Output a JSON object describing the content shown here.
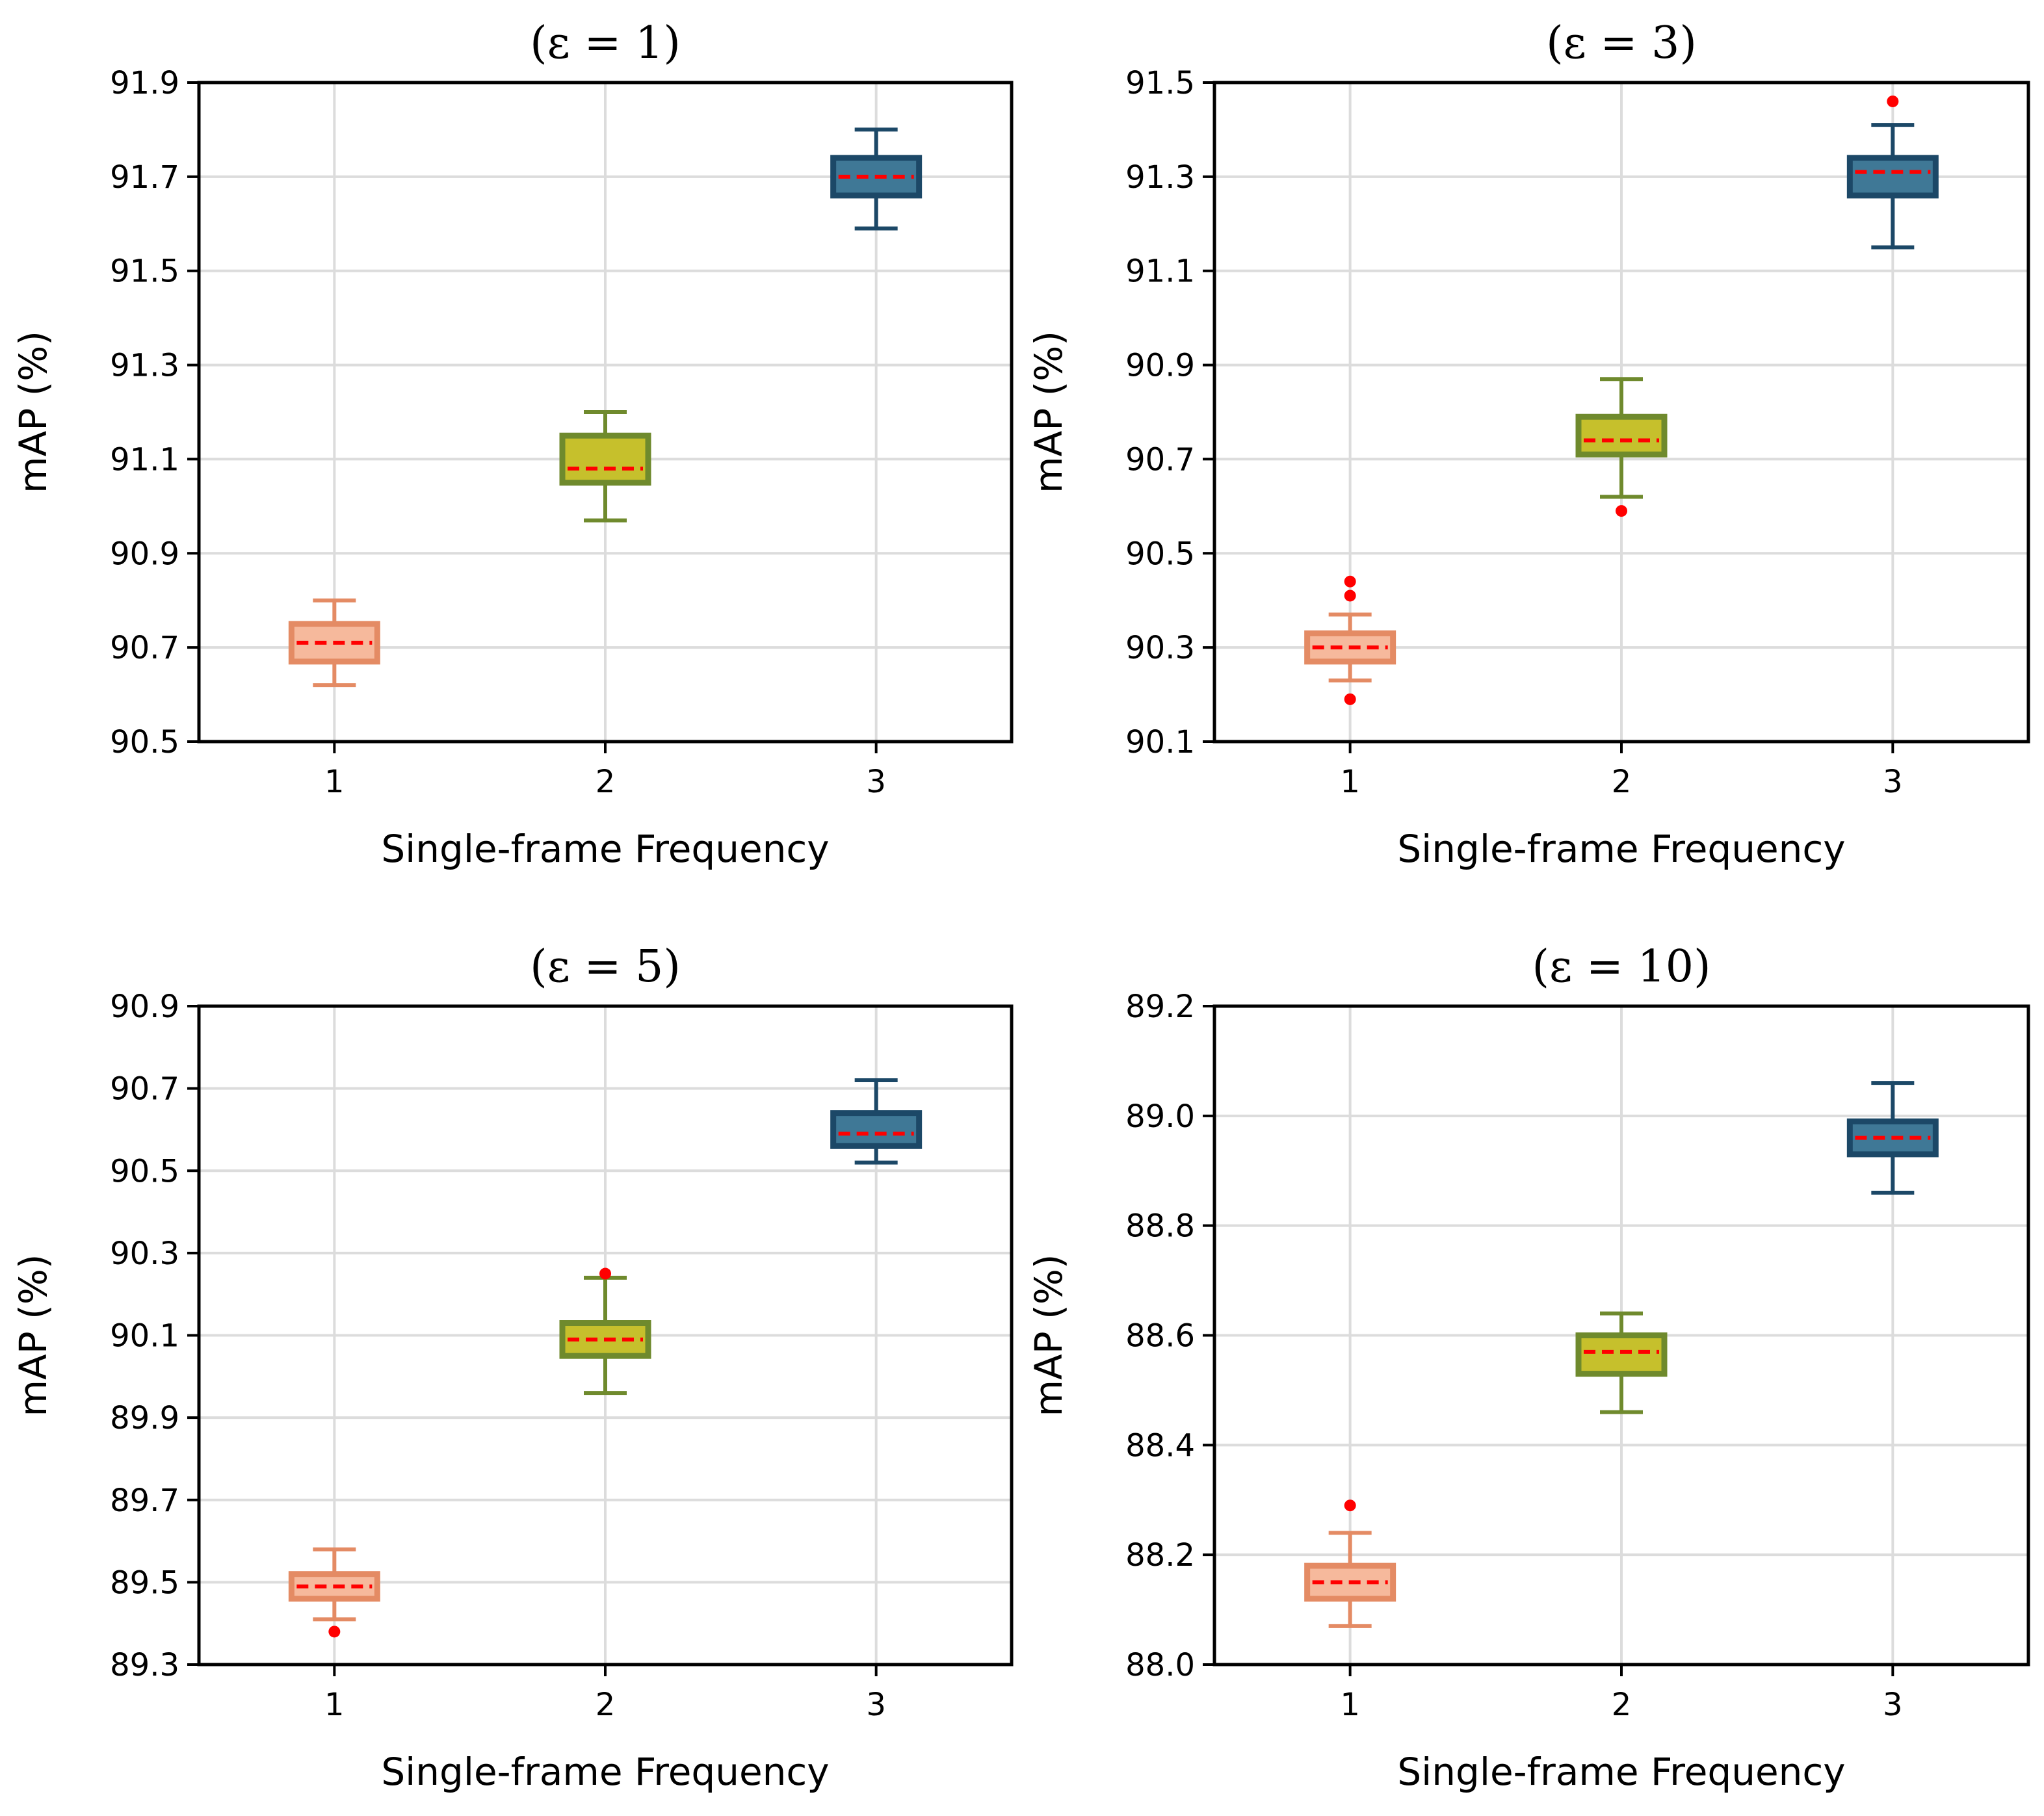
{
  "figure": {
    "colors": {
      "cat1_fill": "#f6b99c",
      "cat1_edge": "#e48b64",
      "cat2_fill": "#c6c02c",
      "cat2_edge": "#6f8a2d",
      "cat3_fill": "#3f7896",
      "cat3_edge": "#1c4867",
      "median": "#ff0000",
      "outlier": "#ff0000",
      "grid": "#dcdcdc"
    }
  },
  "chart_data": [
    {
      "type": "box",
      "title": "(ε = 1)",
      "xlabel": "Single-frame Frequency",
      "ylabel": "mAP (%)",
      "categories": [
        "1",
        "2",
        "3"
      ],
      "ylim": [
        90.5,
        91.9
      ],
      "yticks": [
        "90.5",
        "90.7",
        "90.9",
        "91.1",
        "91.3",
        "91.5",
        "91.7",
        "91.9"
      ],
      "grid": true,
      "boxes": [
        {
          "whisker_low": 90.62,
          "q1": 90.67,
          "median": 90.71,
          "q3": 90.75,
          "whisker_high": 90.8,
          "outliers": []
        },
        {
          "whisker_low": 90.97,
          "q1": 91.05,
          "median": 91.08,
          "q3": 91.15,
          "whisker_high": 91.2,
          "outliers": []
        },
        {
          "whisker_low": 91.59,
          "q1": 91.66,
          "median": 91.7,
          "q3": 91.74,
          "whisker_high": 91.8,
          "outliers": []
        }
      ]
    },
    {
      "type": "box",
      "title": "(ε = 3)",
      "xlabel": "Single-frame Frequency",
      "ylabel": "mAP (%)",
      "categories": [
        "1",
        "2",
        "3"
      ],
      "ylim": [
        90.1,
        91.5
      ],
      "yticks": [
        "90.1",
        "90.3",
        "90.5",
        "90.7",
        "90.9",
        "91.1",
        "91.3",
        "91.5"
      ],
      "grid": true,
      "boxes": [
        {
          "whisker_low": 90.23,
          "q1": 90.27,
          "median": 90.3,
          "q3": 90.33,
          "whisker_high": 90.37,
          "outliers": [
            90.44,
            90.41,
            90.19
          ]
        },
        {
          "whisker_low": 90.62,
          "q1": 90.71,
          "median": 90.74,
          "q3": 90.79,
          "whisker_high": 90.87,
          "outliers": [
            90.59
          ]
        },
        {
          "whisker_low": 91.15,
          "q1": 91.26,
          "median": 91.31,
          "q3": 91.34,
          "whisker_high": 91.41,
          "outliers": [
            91.46
          ]
        }
      ]
    },
    {
      "type": "box",
      "title": "(ε = 5)",
      "xlabel": "Single-frame Frequency",
      "ylabel": "mAP (%)",
      "categories": [
        "1",
        "2",
        "3"
      ],
      "ylim": [
        89.3,
        90.9
      ],
      "yticks": [
        "89.3",
        "89.5",
        "89.7",
        "89.9",
        "90.1",
        "90.3",
        "90.5",
        "90.7",
        "90.9"
      ],
      "grid": true,
      "boxes": [
        {
          "whisker_low": 89.41,
          "q1": 89.46,
          "median": 89.49,
          "q3": 89.52,
          "whisker_high": 89.58,
          "outliers": [
            89.38
          ]
        },
        {
          "whisker_low": 89.96,
          "q1": 90.05,
          "median": 90.09,
          "q3": 90.13,
          "whisker_high": 90.24,
          "outliers": [
            90.25
          ]
        },
        {
          "whisker_low": 90.52,
          "q1": 90.56,
          "median": 90.59,
          "q3": 90.64,
          "whisker_high": 90.72,
          "outliers": []
        }
      ]
    },
    {
      "type": "box",
      "title": "(ε = 10)",
      "xlabel": "Single-frame Frequency",
      "ylabel": "mAP (%)",
      "categories": [
        "1",
        "2",
        "3"
      ],
      "ylim": [
        88.0,
        89.2
      ],
      "yticks": [
        "88.0",
        "88.2",
        "88.4",
        "88.6",
        "88.8",
        "89.0",
        "89.2"
      ],
      "grid": true,
      "boxes": [
        {
          "whisker_low": 88.07,
          "q1": 88.12,
          "median": 88.15,
          "q3": 88.18,
          "whisker_high": 88.24,
          "outliers": [
            88.29
          ]
        },
        {
          "whisker_low": 88.46,
          "q1": 88.53,
          "median": 88.57,
          "q3": 88.6,
          "whisker_high": 88.64,
          "outliers": []
        },
        {
          "whisker_low": 88.86,
          "q1": 88.93,
          "median": 88.96,
          "q3": 88.99,
          "whisker_high": 89.06,
          "outliers": []
        }
      ]
    }
  ]
}
